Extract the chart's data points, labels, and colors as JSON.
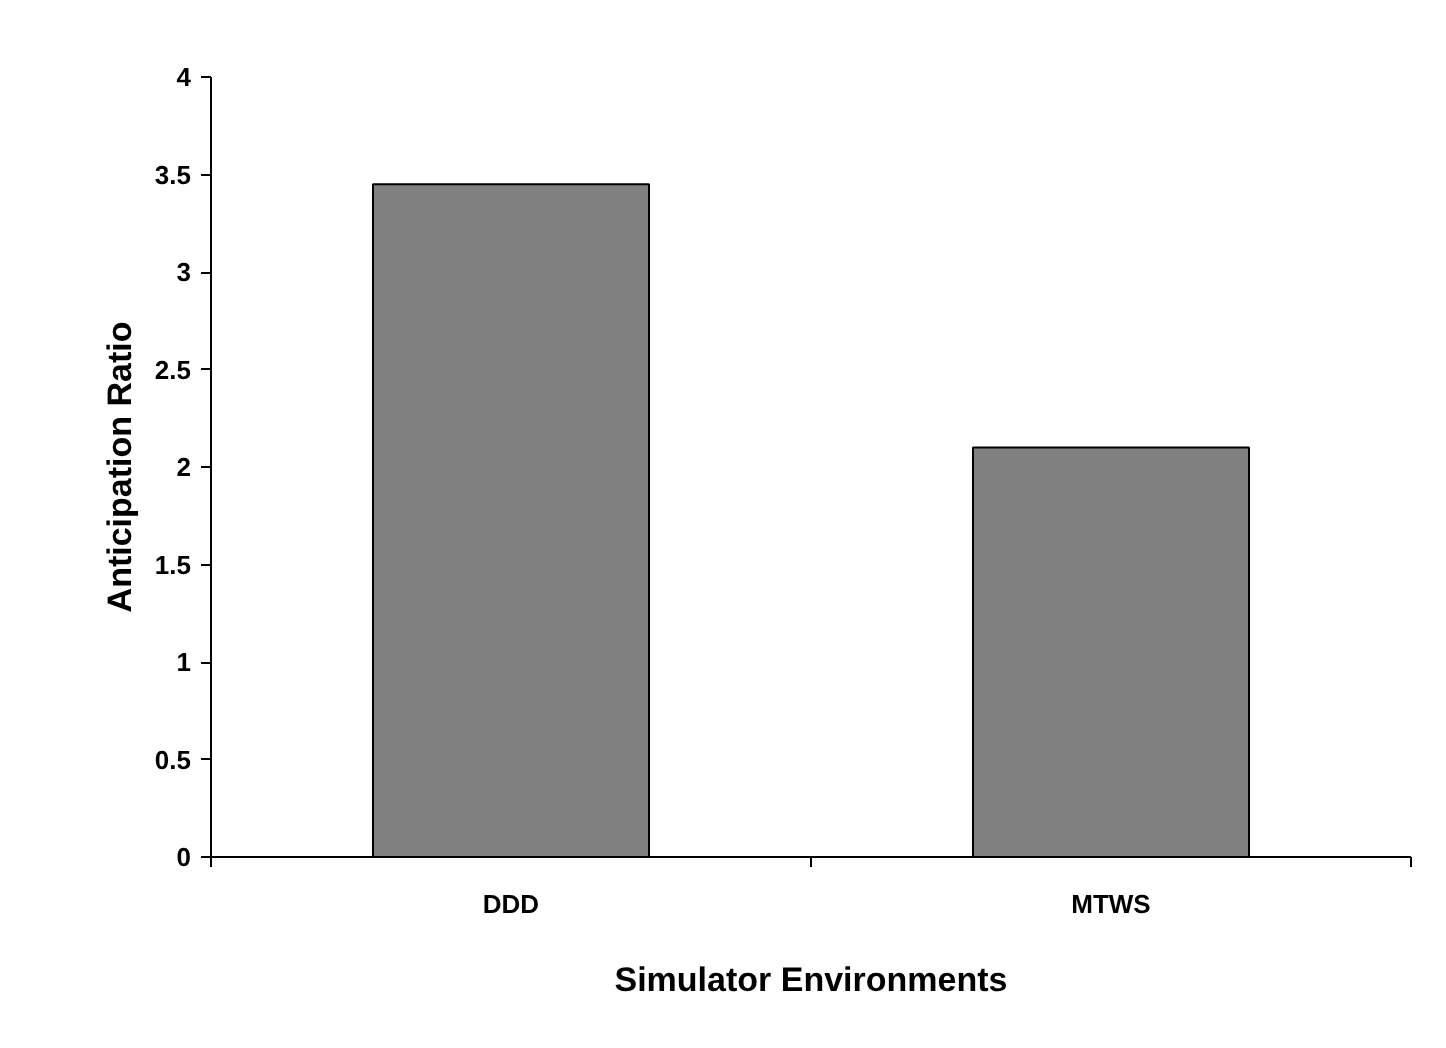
{
  "chart_data": {
    "type": "bar",
    "xlabel": "Simulator Environments",
    "ylabel": "Anticipation Ratio",
    "categories": [
      "DDD",
      "MTWS"
    ],
    "values": [
      3.45,
      2.1
    ],
    "color": "#808080",
    "ylim": [
      0,
      4
    ],
    "yticks": [
      0,
      0.5,
      1,
      1.5,
      2,
      2.5,
      3,
      3.5,
      4
    ],
    "grid": false
  }
}
